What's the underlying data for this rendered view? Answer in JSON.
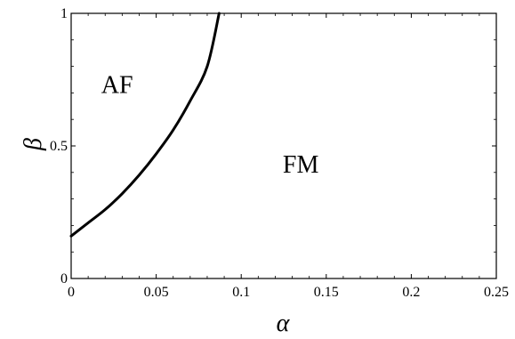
{
  "chart_data": {
    "type": "line",
    "title": "",
    "xlabel": "α",
    "ylabel": "β",
    "xlim": [
      0,
      0.25
    ],
    "ylim": [
      0,
      1
    ],
    "grid": false,
    "x_ticks": [
      0,
      0.05,
      0.1,
      0.15,
      0.2,
      0.25
    ],
    "x_tick_labels": [
      "0",
      "0.05",
      "0.1",
      "0.15",
      "0.2",
      "0.25"
    ],
    "y_ticks": [
      0,
      0.5,
      1
    ],
    "y_tick_labels": [
      "0",
      "0.5",
      "1"
    ],
    "series": [
      {
        "color": "#000000",
        "x": [
          0,
          0.01,
          0.02,
          0.03,
          0.04,
          0.05,
          0.06,
          0.07,
          0.08,
          0.087
        ],
        "y": [
          0.16,
          0.21,
          0.26,
          0.32,
          0.39,
          0.47,
          0.56,
          0.67,
          0.8,
          1.0
        ]
      }
    ],
    "annotations": [
      {
        "text": "AF",
        "x": 0.027,
        "y": 0.73
      },
      {
        "text": "FM",
        "x": 0.135,
        "y": 0.43
      }
    ]
  }
}
